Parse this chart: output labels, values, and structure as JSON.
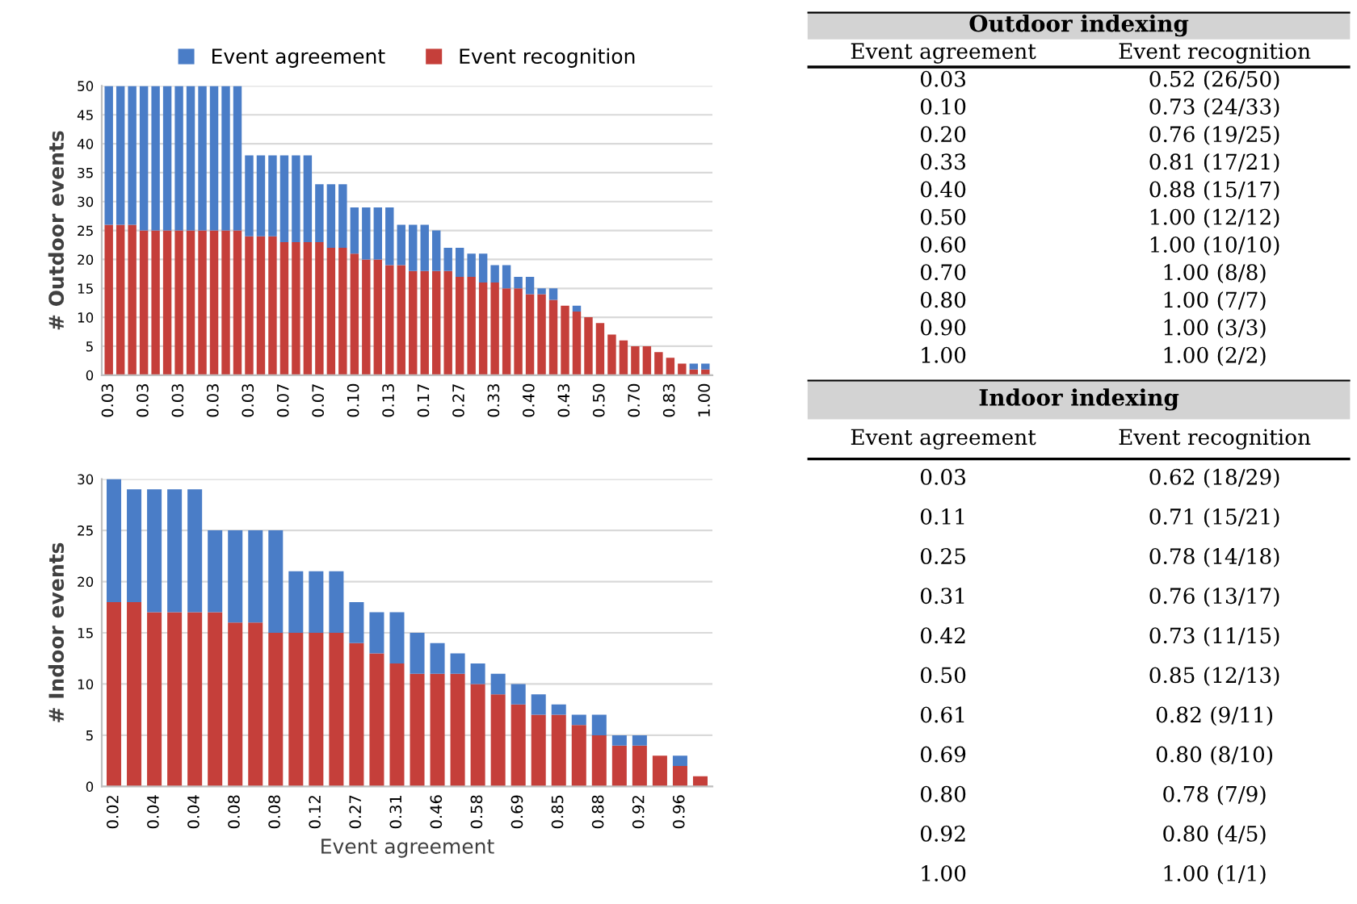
{
  "chart_data": [
    {
      "type": "bar",
      "stacked": true,
      "ylabel": "# Outdoor events",
      "legend": "top",
      "grid": "y",
      "ylim": [
        0,
        50
      ],
      "yticks": [
        0,
        5,
        10,
        15,
        20,
        25,
        30,
        35,
        40,
        45,
        50
      ],
      "categories": [
        "0.03",
        null,
        null,
        "0.03",
        null,
        null,
        "0.03",
        null,
        null,
        "0.03",
        null,
        null,
        "0.03",
        null,
        null,
        "0.07",
        null,
        null,
        "0.07",
        null,
        null,
        "0.10",
        null,
        null,
        "0.13",
        null,
        null,
        "0.17",
        null,
        null,
        "0.27",
        null,
        null,
        "0.33",
        null,
        null,
        "0.40",
        null,
        null,
        "0.43",
        null,
        null,
        "0.50",
        null,
        null,
        "0.70",
        null,
        null,
        "0.83",
        null,
        null,
        "1.00"
      ],
      "series": [
        {
          "name": "Event recognition",
          "color": "#c53f3a",
          "values": [
            26,
            26,
            26,
            25,
            25,
            25,
            25,
            25,
            25,
            25,
            25,
            25,
            24,
            24,
            24,
            23,
            23,
            23,
            23,
            22,
            22,
            21,
            20,
            20,
            19,
            19,
            18,
            18,
            18,
            18,
            17,
            17,
            16,
            16,
            15,
            15,
            14,
            14,
            13,
            12,
            11,
            10,
            9,
            7,
            6,
            5,
            5,
            4,
            3,
            2,
            1,
            1
          ]
        },
        {
          "name": "Event agreement",
          "color": "#4a7dc7",
          "values": [
            24,
            24,
            24,
            25,
            25,
            25,
            25,
            25,
            25,
            25,
            25,
            25,
            14,
            14,
            14,
            15,
            15,
            15,
            10,
            11,
            11,
            8,
            9,
            9,
            10,
            7,
            8,
            8,
            7,
            4,
            5,
            4,
            5,
            3,
            4,
            2,
            3,
            1,
            2,
            0,
            1,
            0,
            0,
            0,
            0,
            0,
            0,
            0,
            0,
            0,
            1,
            1
          ]
        }
      ]
    },
    {
      "type": "bar",
      "stacked": true,
      "ylabel": "# Indoor events",
      "xlabel": "Event agreement",
      "grid": "y",
      "ylim": [
        0,
        30
      ],
      "yticks": [
        0,
        5,
        10,
        15,
        20,
        25,
        30
      ],
      "categories": [
        "0.02",
        null,
        "0.04",
        null,
        "0.04",
        null,
        "0.08",
        null,
        "0.08",
        null,
        "0.12",
        null,
        "0.27",
        null,
        "0.31",
        null,
        "0.46",
        null,
        "0.58",
        null,
        "0.69",
        null,
        "0.85",
        null,
        "0.88",
        null,
        "0.92",
        null,
        "0.96",
        null
      ],
      "series": [
        {
          "color": "#c53f3a",
          "values": [
            18,
            18,
            17,
            17,
            17,
            17,
            16,
            16,
            15,
            15,
            15,
            15,
            14,
            13,
            12,
            11,
            11,
            11,
            10,
            9,
            8,
            7,
            7,
            6,
            5,
            4,
            4,
            3,
            2,
            1
          ]
        },
        {
          "color": "#4a7dc7",
          "values": [
            12,
            11,
            12,
            12,
            12,
            8,
            9,
            9,
            10,
            6,
            6,
            6,
            4,
            4,
            5,
            4,
            3,
            2,
            2,
            2,
            2,
            2,
            1,
            1,
            2,
            1,
            1,
            0,
            1,
            0
          ]
        }
      ]
    },
    {
      "type": "other",
      "title": "Outdoor indexing",
      "categories": [
        "Event agreement",
        "Event recognition"
      ],
      "annotations": [
        "0.03",
        "0.52 (26/50)",
        "0.10",
        "0.73 (24/33)",
        "0.20",
        "0.76 (19/25)",
        "0.33",
        "0.81 (17/21)",
        "0.40",
        "0.88 (15/17)",
        "0.50",
        "1.00 (12/12)",
        "0.60",
        "1.00 (10/10)",
        "0.70",
        "1.00 (8/8)",
        "0.80",
        "1.00 (7/7)",
        "0.90",
        "1.00 (3/3)",
        "1.00",
        "1.00 (2/2)"
      ]
    },
    {
      "type": "other",
      "title": "Indoor indexing",
      "categories": [
        "Event agreement",
        "Event recognition"
      ],
      "annotations": [
        "0.03",
        "0.62 (18/29)",
        "0.11",
        "0.71 (15/21)",
        "0.25",
        "0.78 (14/18)",
        "0.31",
        "0.76 (13/17)",
        "0.42",
        "0.73 (11/15)",
        "0.50",
        "0.85 (12/13)",
        "0.61",
        "0.82 (9/11)",
        "0.69",
        "0.80 (8/10)",
        "0.80",
        "0.78 (7/9)",
        "0.92",
        "0.80 (4/5)",
        "1.00",
        "1.00 (1/1)"
      ]
    }
  ]
}
